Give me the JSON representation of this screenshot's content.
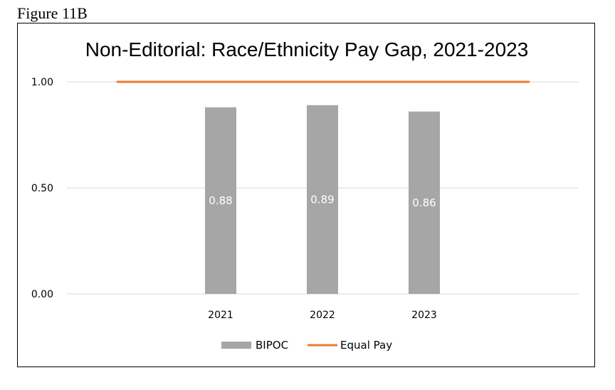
{
  "figure_label": "Figure 11B",
  "chart_data": {
    "type": "bar",
    "title": "Non-Editorial: Race/Ethnicity Pay Gap, 2021-2023",
    "categories": [
      "2021",
      "2022",
      "2023"
    ],
    "series": [
      {
        "name": "BIPOC",
        "type": "bar",
        "values": [
          0.88,
          0.89,
          0.86
        ],
        "data_labels": [
          "0.88",
          "0.89",
          "0.86"
        ],
        "color": "#a6a6a6"
      },
      {
        "name": "Equal Pay",
        "type": "line",
        "values": [
          1.0,
          1.0,
          1.0
        ],
        "color": "#ed7d31"
      }
    ],
    "ylim": [
      0,
      1
    ],
    "yticks": [
      0,
      0.5,
      1
    ],
    "ytick_labels": [
      "0.00",
      "0.50",
      "1.00"
    ],
    "grid": true,
    "legend": "bottom",
    "xlabel": "",
    "ylabel": ""
  }
}
